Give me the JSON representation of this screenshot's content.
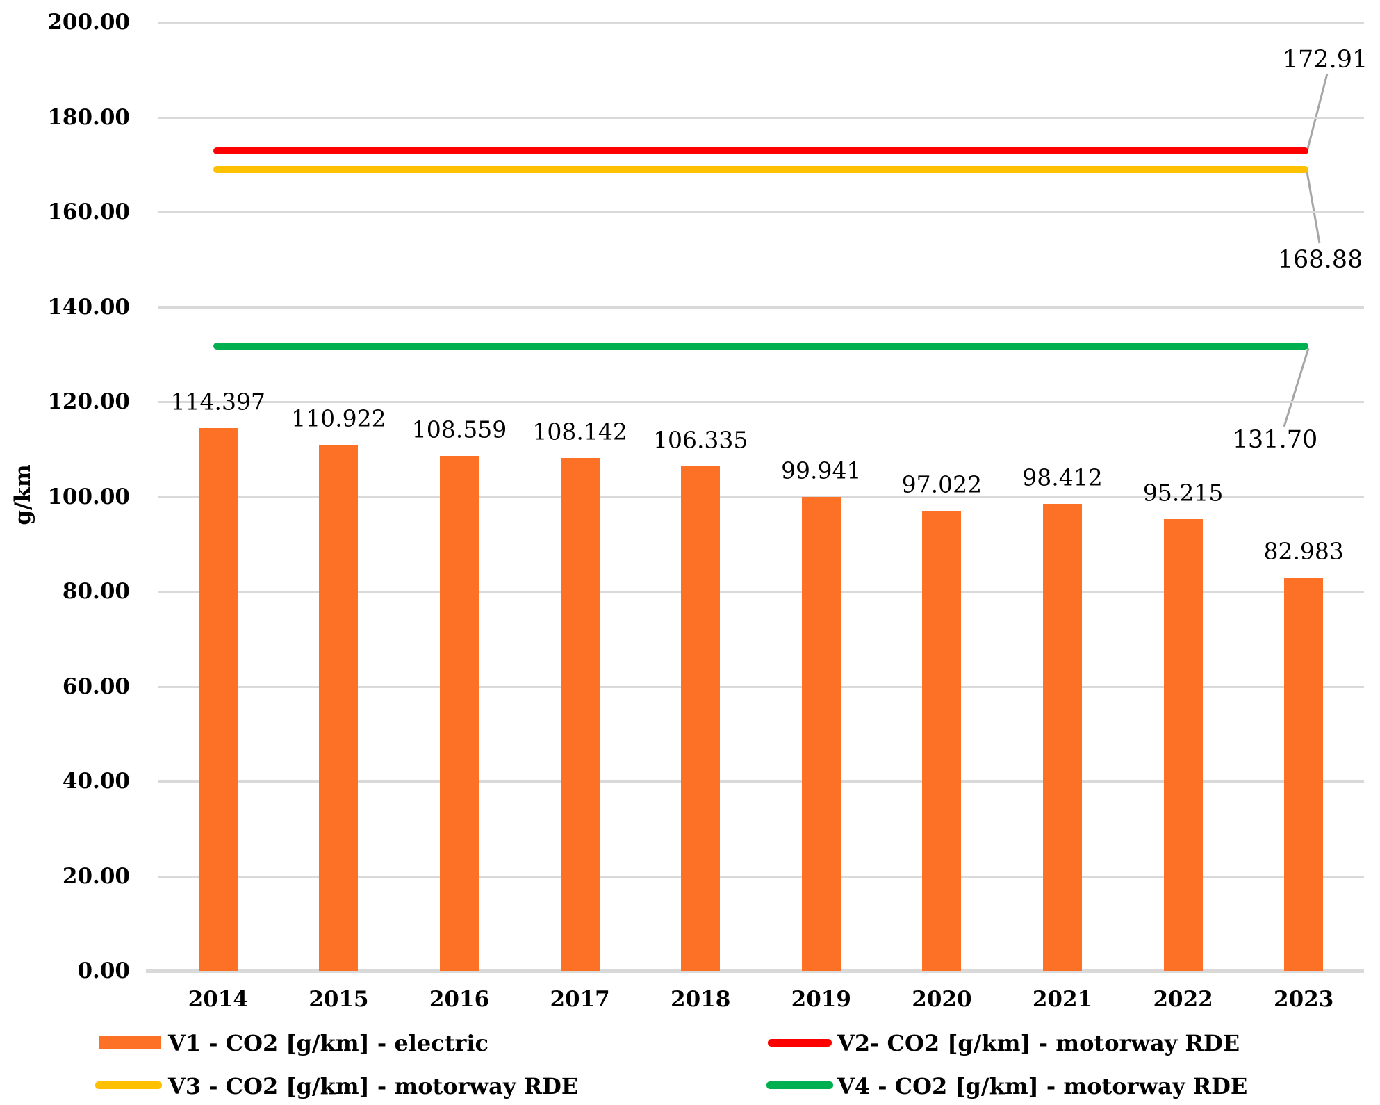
{
  "chart_data": {
    "type": "bar",
    "title": "",
    "ylabel": "g/km",
    "xlabel": "",
    "ylim": [
      0,
      200
    ],
    "ytick_labels": [
      "0.00",
      "20.00",
      "40.00",
      "60.00",
      "80.00",
      "100.00",
      "120.00",
      "140.00",
      "160.00",
      "180.00",
      "200.00"
    ],
    "categories": [
      "2014",
      "2015",
      "2016",
      "2017",
      "2018",
      "2019",
      "2020",
      "2021",
      "2022",
      "2023"
    ],
    "grid": true,
    "legend_position": "bottom",
    "series": [
      {
        "name": "V1 - CO2 [g/km] - electric",
        "type": "bar",
        "color": "#FC7125",
        "values": [
          114.397,
          110.922,
          108.559,
          108.142,
          106.335,
          99.941,
          97.022,
          98.412,
          95.215,
          82.983
        ],
        "value_labels": [
          "114.397",
          "110.922",
          "108.559",
          "108.142",
          "106.335",
          "99.941",
          "97.022",
          "98.412",
          "95.215",
          "82.983"
        ]
      },
      {
        "name": "V2- CO2 [g/km] - motorway RDE",
        "type": "line",
        "color": "#FF0000",
        "value": 172.91,
        "value_label": "172.91"
      },
      {
        "name": "V3 - CO2 [g/km] - motorway RDE",
        "type": "line",
        "color": "#FFC000",
        "value": 168.88,
        "value_label": "168.88"
      },
      {
        "name": "V4 - CO2 [g/km] - motorway RDE",
        "type": "line",
        "color": "#00B050",
        "value": 131.7,
        "value_label": "131.70"
      }
    ]
  },
  "colors": {
    "background": "#FFFFFF",
    "gridline": "#D9D9D9",
    "axis_line": "#D9D9D9",
    "leader_line": "#A6A6A6",
    "text": "#000000"
  }
}
